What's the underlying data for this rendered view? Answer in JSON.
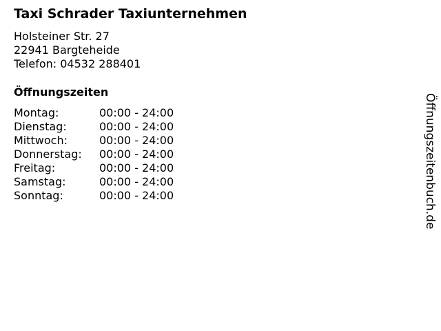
{
  "business": {
    "name": "Taxi Schrader Taxiunternehmen",
    "street": "Holsteiner Str. 27",
    "city": "22941 Bargteheide",
    "phone": "Telefon: 04532 288401"
  },
  "hours": {
    "heading": "Öffnungszeiten",
    "rows": [
      {
        "day": "Montag:",
        "time": "00:00 - 24:00"
      },
      {
        "day": "Dienstag:",
        "time": "00:00 - 24:00"
      },
      {
        "day": "Mittwoch:",
        "time": "00:00 - 24:00"
      },
      {
        "day": "Donnerstag:",
        "time": "00:00 - 24:00"
      },
      {
        "day": "Freitag:",
        "time": "00:00 - 24:00"
      },
      {
        "day": "Samstag:",
        "time": "00:00 - 24:00"
      },
      {
        "day": "Sonntag:",
        "time": "00:00 - 24:00"
      }
    ]
  },
  "watermark": "Öffnungszeitenbuch.de"
}
